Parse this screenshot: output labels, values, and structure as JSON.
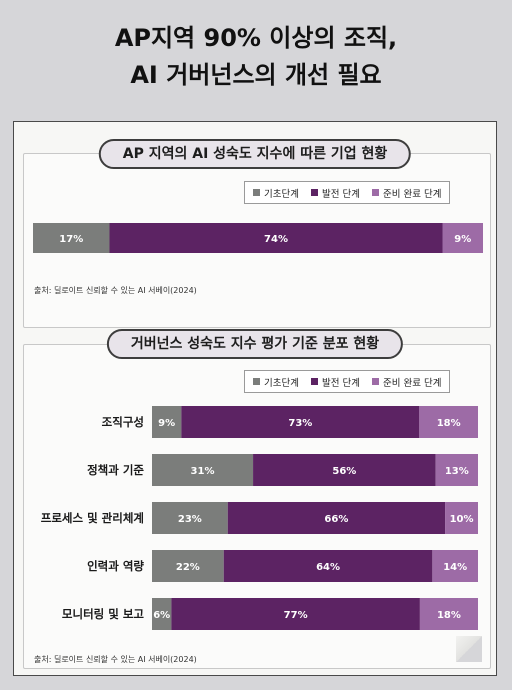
{
  "headline": {
    "line1": "AP지역 90% 이상의 조직,",
    "line2": "AI 거버넌스의 개선 필요"
  },
  "colors": {
    "basic": "#7b7d7b",
    "development": "#5c2363",
    "ready": "#9d6ba6",
    "page_bg": "#d6d6d9",
    "card_bg": "#f7f7f5"
  },
  "section1": {
    "title": "AP 지역의 AI 성숙도 지수에 따른 기업 현황",
    "legend": [
      "기초단계",
      "발전 단계",
      "준비 완료 단계"
    ],
    "source": "출처: 딜로이트 신뢰할 수 있는 AI 서베이(2024)"
  },
  "section2": {
    "title": "거버넌스 성숙도 지수 평가 기준 분포 현황",
    "legend": [
      "기초단계",
      "발전 단계",
      "준비 완료 단계"
    ],
    "source": "출처: 딜로이트 신뢰할 수 있는 AI 서베이(2024)"
  },
  "chart_data": [
    {
      "type": "bar",
      "orientation": "horizontal-stacked",
      "title": "AP 지역의 AI 성숙도 지수에 따른 기업 현황",
      "categories": [
        ""
      ],
      "unit": "%",
      "series": [
        {
          "name": "기초단계",
          "values": [
            17
          ]
        },
        {
          "name": "발전 단계",
          "values": [
            74
          ]
        },
        {
          "name": "준비 완료 단계",
          "values": [
            9
          ]
        }
      ],
      "legend": "top-right"
    },
    {
      "type": "bar",
      "orientation": "horizontal-stacked",
      "title": "거버넌스 성숙도 지수 평가 기준 분포 현황",
      "categories": [
        "조직구성",
        "정책과 기준",
        "프로세스 및 관리체계",
        "인력과 역량",
        "모니터링 및 보고"
      ],
      "unit": "%",
      "series": [
        {
          "name": "기초단계",
          "values": [
            9,
            31,
            23,
            22,
            6
          ]
        },
        {
          "name": "발전 단계",
          "values": [
            73,
            56,
            66,
            64,
            77
          ]
        },
        {
          "name": "준비 완료 단계",
          "values": [
            18,
            13,
            10,
            14,
            18
          ]
        }
      ],
      "legend": "top-right"
    }
  ]
}
